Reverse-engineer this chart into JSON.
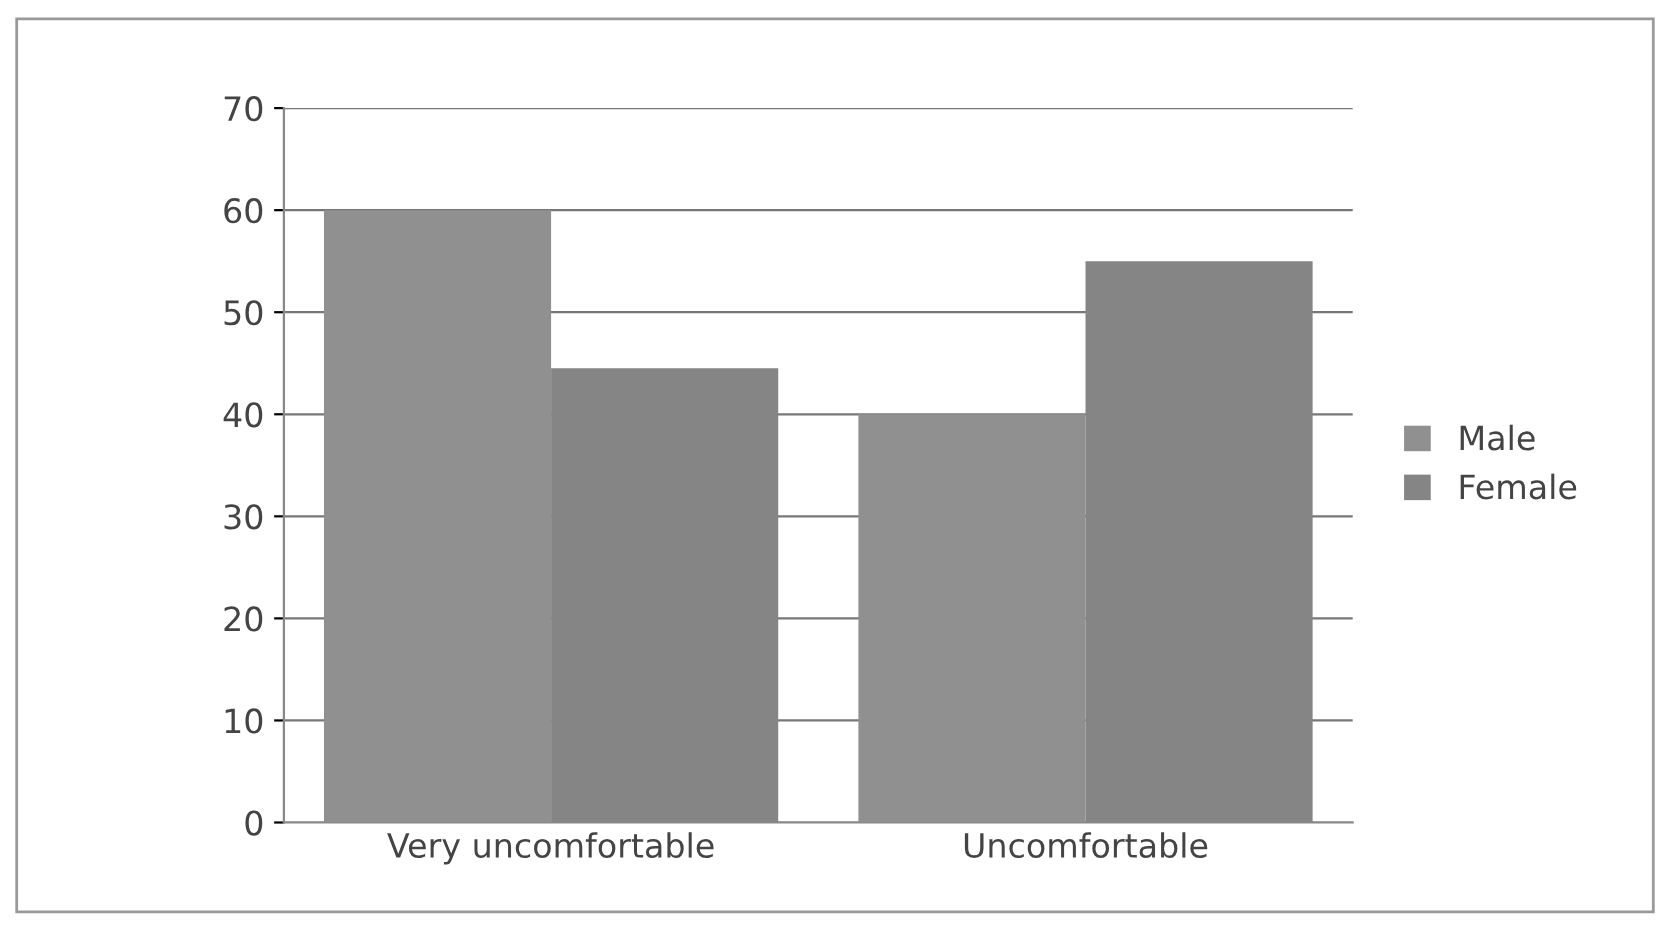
{
  "chart_data": {
    "type": "bar",
    "categories": [
      "Very uncomfortable",
      "Uncomfortable"
    ],
    "series": [
      {
        "name": "Male",
        "color": "#909090",
        "values": [
          60,
          40
        ]
      },
      {
        "name": "Female",
        "color": "#858585",
        "values": [
          44.5,
          55
        ]
      }
    ],
    "ylim": [
      0,
      70
    ],
    "yticks": [
      0,
      10,
      20,
      30,
      40,
      50,
      60,
      70
    ],
    "grid": "y",
    "legend": "right"
  }
}
